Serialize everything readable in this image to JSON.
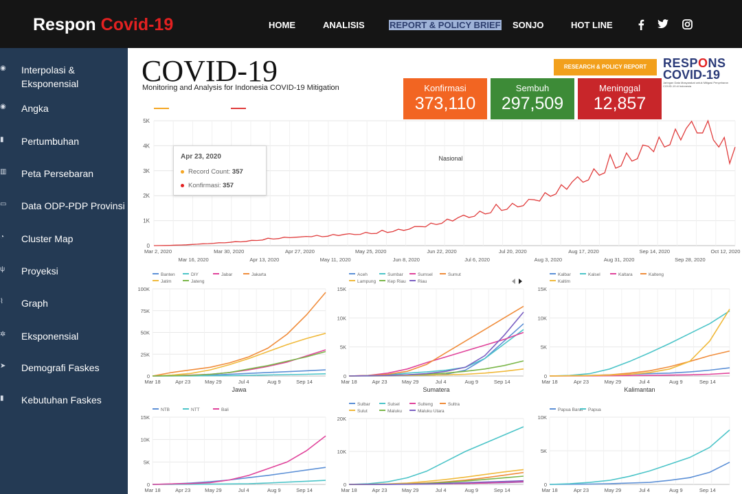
{
  "header": {
    "brand_prefix": "Respon",
    "brand_accent": "Covid-19",
    "nav": [
      "HOME",
      "ANALISIS",
      "REPORT & POLICY BRIEF",
      "SONJO",
      "HOT LINE"
    ],
    "active_nav": "REPORT & POLICY BRIEF",
    "social": {
      "facebook": "f",
      "twitter": "t",
      "instagram": "o"
    }
  },
  "sidebar": {
    "items": [
      {
        "label": "Interpolasi & Eksponensial",
        "icon": "globe-icon"
      },
      {
        "label": "Angka",
        "icon": "globe-icon"
      },
      {
        "label": "Pertumbuhan",
        "icon": "bookmark-icon"
      },
      {
        "label": "Peta Persebaran",
        "icon": "bar-chart-icon"
      },
      {
        "label": "Data ODP-PDP Provinsi",
        "icon": "monitor-icon"
      },
      {
        "label": "Cluster Map",
        "icon": "pie-icon"
      },
      {
        "label": "Proyeksi",
        "icon": "pin-icon"
      },
      {
        "label": "Graph",
        "icon": "line-chart-icon"
      },
      {
        "label": "Eksponensial",
        "icon": "gear-icon"
      },
      {
        "label": "Demografi Faskes",
        "icon": "send-icon"
      },
      {
        "label": "Kebutuhan Faskes",
        "icon": "bookmark-icon"
      }
    ]
  },
  "dashboard": {
    "title": "COVID-19",
    "subtitle": "Monitoring and Analysis for Indonesia COVID-19 Mitigation",
    "research_button": "RESEARCH & POLICY REPORT",
    "logo": {
      "line1_a": "RESP",
      "line1_o": "O",
      "line1_b": "NS",
      "line2": "COVID-19",
      "tagline": "Jaringan Data Masyarakat untuk Mitigasi Penyebaran COVID-19 di Indonesia"
    },
    "cards": [
      {
        "label": "Konfirmasi",
        "value": "373,110",
        "color": "#f26522"
      },
      {
        "label": "Sembuh",
        "value": "297,509",
        "color": "#3d8b37"
      },
      {
        "label": "Meninggal",
        "value": "12,857",
        "color": "#c8262a"
      }
    ]
  },
  "tooltip": {
    "date": "Apr 23, 2020",
    "rows": [
      {
        "label": "Record Count:",
        "value": "357",
        "color": "#f5a623"
      },
      {
        "label": "Konfirmasi:",
        "value": "357",
        "color": "#e32121"
      }
    ]
  },
  "chart_data": [
    {
      "type": "line",
      "annotation": "Nasional",
      "ylim": [
        0,
        5000
      ],
      "y_ticks": [
        "0",
        "1K",
        "2K",
        "3K",
        "4K",
        "5K"
      ],
      "x_ticks_top": [
        "Mar 2, 2020",
        "Mar 30, 2020",
        "Apr 27, 2020",
        "May 25, 2020",
        "Jun 22, 2020",
        "Jul 20, 2020",
        "Aug 17, 2020",
        "Sep 14, 2020",
        "Oct 12, 2020"
      ],
      "x_ticks_bottom": [
        "Mar 16, 2020",
        "Apr 13, 2020",
        "May 11, 2020",
        "Jun 8, 2020",
        "Jul 6, 2020",
        "Aug 3, 2020",
        "Aug 31, 2020",
        "Sep 28, 2020"
      ],
      "series": [
        {
          "color": "#e03b3b",
          "values": [
            0,
            2,
            5,
            10,
            20,
            25,
            30,
            45,
            60,
            70,
            85,
            100,
            110,
            120,
            130,
            150,
            160,
            180,
            200,
            220,
            240,
            260,
            280,
            300,
            320,
            340,
            357,
            330,
            360,
            380,
            390,
            380,
            400,
            420,
            430,
            440,
            450,
            470,
            480,
            500,
            510,
            520,
            540,
            560,
            600,
            620,
            650,
            700,
            720,
            750,
            800,
            850,
            900,
            950,
            1000,
            1050,
            1100,
            1150,
            1200,
            1250,
            1300,
            1350,
            1400,
            1450,
            1500,
            1550,
            1600,
            1650,
            1700,
            1750,
            1800,
            1900,
            2000,
            2100,
            2200,
            2300,
            2400,
            2500,
            2600,
            2700,
            2800,
            2900,
            3000,
            3100,
            3200,
            3300,
            3400,
            3500,
            3600,
            3700,
            3800,
            3900,
            4000,
            4100,
            4200,
            4300,
            4400,
            4500,
            4600,
            4700,
            4800,
            4800,
            4750,
            4500,
            4200,
            3800,
            3500,
            4200
          ]
        }
      ]
    },
    {
      "type": "line",
      "title": "Jawa",
      "ylim": [
        0,
        100000
      ],
      "y_ticks": [
        "0",
        "25K",
        "50K",
        "75K",
        "100K"
      ],
      "x_ticks": [
        "Mar 18",
        "Apr 23",
        "May 29",
        "Jul 4",
        "Aug 9",
        "Sep 14"
      ],
      "series": [
        {
          "name": "Banten",
          "color": "#5b8fd6",
          "values": [
            0,
            200,
            500,
            1000,
            2000,
            3000,
            4000,
            5000,
            6000,
            7000
          ]
        },
        {
          "name": "DIY",
          "color": "#4bc4c8",
          "values": [
            0,
            50,
            150,
            300,
            500,
            800,
            1200,
            1600,
            2000,
            2500
          ]
        },
        {
          "name": "Jabar",
          "color": "#e0429a",
          "values": [
            0,
            500,
            1000,
            2000,
            4000,
            7000,
            11000,
            16000,
            23000,
            30000
          ]
        },
        {
          "name": "Jakarta",
          "color": "#f08c3a",
          "values": [
            0,
            4000,
            7000,
            10000,
            15000,
            22000,
            32000,
            48000,
            70000,
            96000
          ]
        },
        {
          "name": "Jatim",
          "color": "#f0b93a",
          "values": [
            0,
            1000,
            3000,
            7000,
            13000,
            20000,
            28000,
            36000,
            43000,
            49000
          ]
        },
        {
          "name": "Jateng",
          "color": "#7ab648",
          "values": [
            0,
            300,
            800,
            2000,
            4000,
            8000,
            12000,
            17000,
            22000,
            28000
          ]
        }
      ]
    },
    {
      "type": "line",
      "title": "Sumatera",
      "ylim": [
        0,
        15000
      ],
      "y_ticks": [
        "0",
        "5K",
        "10K",
        "15K"
      ],
      "x_ticks": [
        "Mar 18",
        "Apr 23",
        "May 29",
        "Jul 4",
        "Aug 9",
        "Sep 14"
      ],
      "series": [
        {
          "name": "Aceh",
          "color": "#5b8fd6",
          "values": [
            0,
            10,
            20,
            50,
            100,
            300,
            1000,
            3000,
            6000,
            9000
          ]
        },
        {
          "name": "Sumbar",
          "color": "#4bc4c8",
          "values": [
            0,
            50,
            200,
            500,
            700,
            1000,
            1500,
            3000,
            5500,
            8000
          ]
        },
        {
          "name": "Sumsel",
          "color": "#e0429a",
          "values": [
            0,
            100,
            500,
            1200,
            2300,
            3300,
            4300,
            5300,
            6300,
            7500
          ]
        },
        {
          "name": "Sumut",
          "color": "#f08c3a",
          "values": [
            0,
            100,
            300,
            800,
            2000,
            4000,
            6000,
            8000,
            10000,
            12000
          ]
        },
        {
          "name": "Lampung",
          "color": "#f0b93a",
          "values": [
            0,
            30,
            60,
            100,
            150,
            200,
            300,
            500,
            800,
            1200
          ]
        },
        {
          "name": "Kep Riau",
          "color": "#7ab648",
          "values": [
            0,
            50,
            100,
            200,
            300,
            500,
            800,
            1200,
            1800,
            2600
          ]
        },
        {
          "name": "Riau",
          "color": "#7a5fc2",
          "values": [
            0,
            50,
            100,
            200,
            400,
            800,
            1500,
            3500,
            7000,
            11000
          ]
        }
      ]
    },
    {
      "type": "line",
      "title": "Kalimantan",
      "ylim": [
        0,
        15000
      ],
      "y_ticks": [
        "0",
        "5K",
        "10K",
        "15K"
      ],
      "x_ticks": [
        "Mar 18",
        "Apr 23",
        "May 29",
        "Jul 4",
        "Aug 9",
        "Sep 14"
      ],
      "series": [
        {
          "name": "Kalbar",
          "color": "#5b8fd6",
          "values": [
            0,
            50,
            100,
            200,
            300,
            400,
            500,
            700,
            1000,
            1400
          ]
        },
        {
          "name": "Kalsel",
          "color": "#4bc4c8",
          "values": [
            0,
            100,
            400,
            1200,
            2500,
            4000,
            5600,
            7300,
            9000,
            11200
          ]
        },
        {
          "name": "Kaltara",
          "color": "#e0429a",
          "values": [
            0,
            10,
            20,
            50,
            80,
            100,
            150,
            200,
            300,
            500
          ]
        },
        {
          "name": "Kalteng",
          "color": "#f08c3a",
          "values": [
            0,
            30,
            80,
            200,
            500,
            900,
            1600,
            2500,
            3500,
            4300
          ]
        },
        {
          "name": "Kaltim",
          "color": "#f0b93a",
          "values": [
            0,
            30,
            80,
            150,
            300,
            600,
            1200,
            2500,
            6000,
            11500
          ]
        }
      ]
    },
    {
      "type": "line",
      "title": "",
      "ylim": [
        0,
        15000
      ],
      "y_ticks": [
        "0",
        "5K",
        "10K",
        "15K"
      ],
      "x_ticks": [
        "Mar 18",
        "Apr 23",
        "May 29",
        "Jul 4",
        "Aug 9",
        "Sep 14"
      ],
      "series": [
        {
          "name": "NTB",
          "color": "#5b8fd6",
          "values": [
            0,
            100,
            300,
            600,
            1000,
            1500,
            2000,
            2600,
            3200,
            3800
          ]
        },
        {
          "name": "NTT",
          "color": "#4bc4c8",
          "values": [
            0,
            10,
            30,
            60,
            100,
            150,
            300,
            500,
            700,
            900
          ]
        },
        {
          "name": "Bali",
          "color": "#e0429a",
          "values": [
            0,
            100,
            200,
            400,
            1000,
            2000,
            3500,
            5000,
            7500,
            10800
          ]
        }
      ]
    },
    {
      "type": "line",
      "title": "",
      "ylim": [
        0,
        20000
      ],
      "y_ticks": [
        "0",
        "10K",
        "20K"
      ],
      "x_ticks": [
        "Mar 18",
        "Apr 23",
        "May 29",
        "Jul 4",
        "Aug 9",
        "Sep 14"
      ],
      "series": [
        {
          "name": "Sulbar",
          "color": "#5b8fd6",
          "values": [
            0,
            10,
            20,
            50,
            100,
            200,
            300,
            400,
            500,
            700
          ]
        },
        {
          "name": "Sulsel",
          "color": "#4bc4c8",
          "values": [
            0,
            200,
            800,
            2000,
            4000,
            7000,
            10000,
            12500,
            15000,
            17500
          ]
        },
        {
          "name": "Sulteng",
          "color": "#e0429a",
          "values": [
            0,
            20,
            50,
            100,
            150,
            200,
            300,
            400,
            600,
            800
          ]
        },
        {
          "name": "Sultra",
          "color": "#f08c3a",
          "values": [
            0,
            50,
            100,
            200,
            400,
            800,
            1300,
            2000,
            2800,
            3600
          ]
        },
        {
          "name": "Sulut",
          "color": "#f0b93a",
          "values": [
            0,
            50,
            150,
            400,
            900,
            1500,
            2200,
            3000,
            3800,
            4500
          ]
        },
        {
          "name": "Maluku",
          "color": "#7ab648",
          "values": [
            0,
            20,
            50,
            100,
            300,
            600,
            1000,
            1500,
            2000,
            2500
          ]
        },
        {
          "name": "Maluku Utara",
          "color": "#7a5fc2",
          "values": [
            0,
            20,
            40,
            80,
            150,
            300,
            500,
            700,
            900,
            1100
          ]
        }
      ]
    },
    {
      "type": "line",
      "title": "",
      "ylim": [
        0,
        10000
      ],
      "y_ticks": [
        "0",
        "5K",
        "10K"
      ],
      "x_ticks": [
        "Mar 18",
        "Apr 23",
        "May 29",
        "Jul 4",
        "Aug 9",
        "Sep 14"
      ],
      "series": [
        {
          "name": "Papua Barat",
          "color": "#5b8fd6",
          "values": [
            0,
            20,
            50,
            100,
            200,
            300,
            600,
            1000,
            1800,
            3300
          ]
        },
        {
          "name": "Papua",
          "color": "#4bc4c8",
          "values": [
            0,
            100,
            300,
            600,
            1200,
            2000,
            3000,
            4000,
            5500,
            8100
          ]
        }
      ]
    }
  ]
}
